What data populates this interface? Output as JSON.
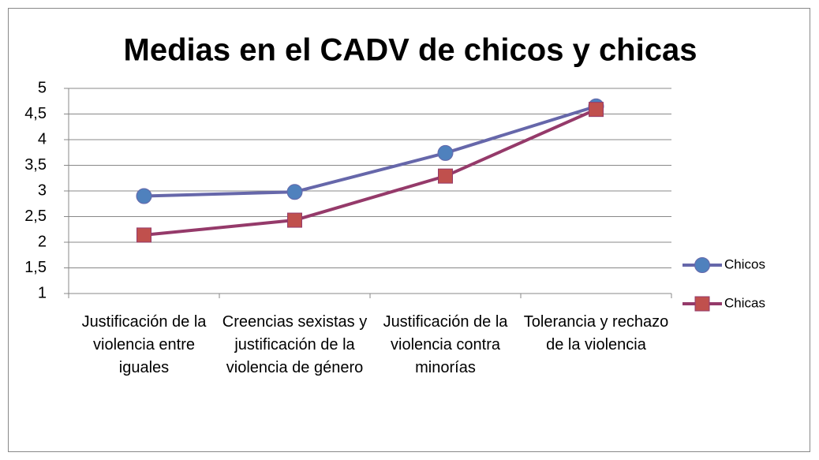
{
  "chart_data": {
    "type": "line",
    "title": "Medias en el CADV de chicos y chicas",
    "categories": [
      "Justificación de la violencia entre iguales",
      "Creencias sexistas y justificación de la violencia de género",
      "Justificación de la violencia contra minorías",
      "Tolerancia y rechazo de la violencia"
    ],
    "series": [
      {
        "name": "Chicos",
        "color": "#6667aa",
        "marker_color": "#4f81bd",
        "marker": "circle",
        "values": [
          2.9,
          2.98,
          3.74,
          4.65
        ]
      },
      {
        "name": "Chicas",
        "color": "#953a6a",
        "marker_color": "#c0504d",
        "marker": "square",
        "values": [
          2.14,
          2.43,
          3.29,
          4.59
        ]
      }
    ],
    "ylim": [
      1,
      5
    ],
    "yticks": [
      1,
      {
        "value": 1.5,
        "label": "1,5"
      },
      2,
      {
        "value": 2.5,
        "label": "2,5"
      },
      3,
      {
        "value": 3.5,
        "label": "3,5"
      },
      4,
      {
        "value": 4.5,
        "label": "4,5"
      },
      5
    ],
    "grid": true,
    "legend": "right"
  }
}
